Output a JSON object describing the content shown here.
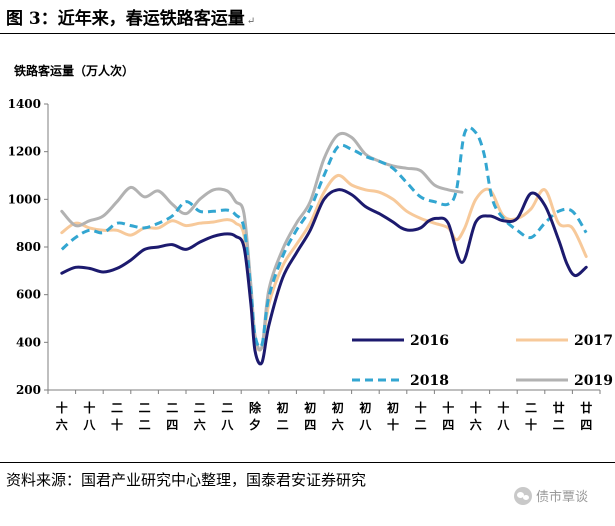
{
  "figure": {
    "title": "图 3：近年来，春运铁路客运量",
    "source": "资料来源：国君产业研究中心整理，国泰君安证券研究",
    "watermark": "债市覃谈"
  },
  "colors": {
    "2016": "#1c1a6e",
    "2017": "#f7c99a",
    "2018": "#33a6d1",
    "2019": "#b2b2b2",
    "axis": "#7f7f7f"
  },
  "chart_data": {
    "type": "line",
    "ylabel": "铁路客运量（万人次）",
    "ylim": [
      200,
      1400
    ],
    "yticks": [
      200,
      400,
      600,
      800,
      1000,
      1200,
      1400
    ],
    "categories": [
      "十六",
      "十八",
      "二十",
      "二二",
      "二四",
      "二六",
      "二八",
      "除夕",
      "初二",
      "初四",
      "初六",
      "初八",
      "初十",
      "十二",
      "十四",
      "十六",
      "十八",
      "二十",
      "廿二",
      "廿四"
    ],
    "grid": false,
    "legend_position": "inside-lower-right",
    "series": [
      {
        "name": "2016",
        "line_style": "solid",
        "color": "#1c1a6e",
        "x": [
          0,
          0.5,
          1,
          1.5,
          2,
          2.5,
          3,
          3.5,
          4,
          4.5,
          5,
          5.5,
          6,
          6.3,
          6.6,
          6.85,
          7,
          7.25,
          7.5,
          8,
          8.5,
          9,
          9.5,
          10,
          10.5,
          11,
          11.5,
          12,
          12.3,
          12.6,
          13,
          13.3,
          13.6,
          14,
          14.5,
          15,
          15.5,
          16,
          16.5,
          17,
          17.5,
          18,
          18.3,
          18.6,
          19
        ],
        "values": [
          690,
          715,
          710,
          695,
          710,
          745,
          790,
          800,
          810,
          790,
          820,
          845,
          855,
          845,
          800,
          560,
          365,
          315,
          470,
          670,
          775,
          870,
          1000,
          1040,
          1020,
          970,
          940,
          905,
          880,
          870,
          880,
          910,
          920,
          900,
          735,
          905,
          930,
          910,
          920,
          1025,
          975,
          830,
          730,
          680,
          715
        ]
      },
      {
        "name": "2017",
        "line_style": "solid",
        "color": "#f7c99a",
        "x": [
          0,
          0.5,
          1,
          1.5,
          2,
          2.5,
          3,
          3.5,
          4,
          4.5,
          5,
          5.5,
          6,
          6.3,
          6.6,
          6.85,
          7,
          7.25,
          7.5,
          8,
          8.5,
          9,
          9.5,
          10,
          10.5,
          11,
          11.5,
          12,
          12.5,
          13,
          13.5,
          14,
          14.3,
          14.6,
          15,
          15.5,
          16,
          16.5,
          17,
          17.5,
          18,
          18.5,
          19
        ],
        "values": [
          860,
          900,
          880,
          870,
          870,
          850,
          880,
          880,
          910,
          890,
          900,
          905,
          915,
          900,
          850,
          580,
          405,
          380,
          560,
          720,
          810,
          900,
          1030,
          1100,
          1060,
          1040,
          1030,
          1000,
          950,
          920,
          900,
          880,
          830,
          880,
          1000,
          1040,
          930,
          920,
          960,
          1040,
          900,
          880,
          760
        ]
      },
      {
        "name": "2018",
        "line_style": "dashed",
        "color": "#33a6d1",
        "x": [
          0,
          0.5,
          1,
          1.5,
          2,
          2.5,
          3,
          3.5,
          4,
          4.5,
          5,
          5.5,
          6,
          6.3,
          6.6,
          6.85,
          7,
          7.25,
          7.5,
          8,
          8.5,
          9,
          9.5,
          10,
          10.5,
          11,
          11.5,
          12,
          12.5,
          13,
          13.5,
          14,
          14.3,
          14.6,
          15,
          15.3,
          15.6,
          16,
          16.5,
          17,
          17.5,
          18,
          18.5,
          19
        ],
        "values": [
          790,
          840,
          870,
          860,
          900,
          890,
          880,
          900,
          930,
          990,
          950,
          950,
          955,
          935,
          880,
          620,
          430,
          390,
          590,
          760,
          870,
          960,
          1100,
          1220,
          1210,
          1180,
          1160,
          1130,
          1070,
          1010,
          990,
          980,
          1040,
          1280,
          1280,
          1190,
          1000,
          920,
          870,
          840,
          900,
          950,
          950,
          860
        ]
      },
      {
        "name": "2019",
        "line_style": "solid",
        "color": "#b2b2b2",
        "x": [
          0,
          0.5,
          1,
          1.5,
          2,
          2.5,
          3,
          3.5,
          4,
          4.5,
          5,
          5.5,
          6,
          6.3,
          6.6,
          6.85,
          7,
          7.25,
          7.5,
          8,
          8.5,
          9,
          9.5,
          10,
          10.5,
          11,
          11.5,
          12,
          12.5,
          13,
          13.5,
          14,
          14.5
        ],
        "values": [
          950,
          890,
          910,
          930,
          990,
          1050,
          1010,
          1035,
          980,
          940,
          1000,
          1040,
          1035,
          990,
          940,
          640,
          430,
          380,
          620,
          790,
          900,
          990,
          1170,
          1270,
          1260,
          1190,
          1160,
          1140,
          1130,
          1120,
          1060,
          1040,
          1030
        ]
      }
    ]
  }
}
